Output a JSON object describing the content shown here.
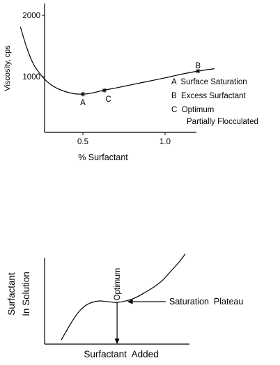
{
  "chart_data": [
    {
      "type": "line",
      "ylabel": "Viscosity, cps",
      "xlabel": "% Surfactant",
      "yticks": [
        "2000",
        "1000"
      ],
      "xticks": [
        "0.5",
        "1.0"
      ],
      "series": [
        {
          "x": [
            0.12,
            0.16,
            0.2,
            0.25,
            0.3,
            0.35,
            0.4,
            0.45,
            0.5,
            0.55,
            0.6,
            0.65,
            0.7,
            0.8,
            0.9,
            1.0,
            1.1,
            1.2,
            1.3
          ],
          "y": [
            1810,
            1460,
            1200,
            1010,
            880,
            800,
            750,
            720,
            715,
            730,
            760,
            790,
            815,
            870,
            925,
            980,
            1040,
            1090,
            1130
          ]
        }
      ],
      "points": [
        {
          "label": "A",
          "x": 0.5,
          "y": 715
        },
        {
          "label": "C",
          "x": 0.63,
          "y": 775
        },
        {
          "label": "B",
          "x": 1.2,
          "y": 1090
        }
      ],
      "legend": [
        {
          "line1": "A  Surface Saturation"
        },
        {
          "line1": "B  Excess Surfactant"
        },
        {
          "line1": "C  Optimum",
          "line2": "Partially Flocculated"
        }
      ]
    },
    {
      "type": "line",
      "ylabel_line1": "Surfactant",
      "ylabel_line2": "In Solution",
      "xlabel": "Surfactant  Added",
      "series": [
        {
          "x": [
            0.0,
            0.08,
            0.15,
            0.22,
            0.3,
            0.37,
            0.45,
            0.52,
            0.6,
            0.68,
            0.75,
            0.82,
            0.9,
            0.95,
            1.0
          ],
          "y": [
            0.0,
            0.25,
            0.43,
            0.53,
            0.57,
            0.56,
            0.55,
            0.57,
            0.62,
            0.7,
            0.78,
            0.88,
            1.04,
            1.14,
            1.26
          ]
        }
      ],
      "optimum": {
        "label": "Optimum",
        "x": 0.45
      },
      "annotation": {
        "label": "Saturation  Plateau",
        "x": 0.52,
        "y": 0.57
      }
    }
  ]
}
